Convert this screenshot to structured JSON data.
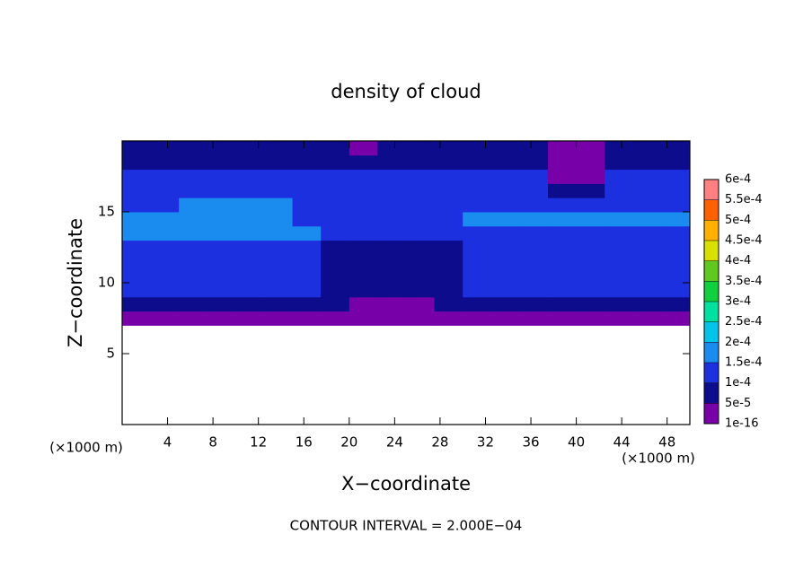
{
  "chart_data": {
    "type": "contour",
    "title": "density of cloud",
    "xlabel": "X−coordinate",
    "ylabel": "Z−coordinate",
    "xunit_left": "(×1000 m)",
    "xunit_right": "(×1000 m)",
    "footnote": "CONTOUR INTERVAL = 2.000E−04",
    "xlim": [
      0,
      50
    ],
    "ylim": [
      0,
      20
    ],
    "xticks": [
      4,
      8,
      12,
      16,
      20,
      24,
      28,
      32,
      36,
      40,
      44,
      48
    ],
    "yticks": [
      5,
      10,
      15
    ],
    "x": [
      1.25,
      3.75,
      6.25,
      8.75,
      11.25,
      13.75,
      16.25,
      18.75,
      21.25,
      23.75,
      26.25,
      28.75,
      31.25,
      33.75,
      36.25,
      38.75,
      41.25,
      43.75,
      46.25,
      48.75
    ],
    "y": [
      7.5,
      8.5,
      9.5,
      10.5,
      11.5,
      12.5,
      13.5,
      14.5,
      15.5,
      16.5,
      17.5,
      18.5,
      19.5
    ],
    "z": [
      [
        3e-05,
        3e-05,
        3e-05,
        3e-05,
        3e-05,
        3e-05,
        3e-05,
        3e-05,
        3e-05,
        3e-05,
        3e-05,
        3e-05,
        3e-05,
        3e-05,
        3e-05,
        3e-05,
        3e-05,
        3e-05,
        3e-05,
        3e-05
      ],
      [
        7e-05,
        7e-05,
        7e-05,
        7e-05,
        7e-05,
        7e-05,
        7e-05,
        7e-05,
        4e-05,
        4e-05,
        4e-05,
        7e-05,
        7e-05,
        7e-05,
        7e-05,
        7e-05,
        7e-05,
        7e-05,
        7e-05,
        7e-05
      ],
      [
        0.00011,
        0.00011,
        0.00011,
        0.00011,
        0.00011,
        0.00011,
        0.00011,
        8e-05,
        8e-05,
        8e-05,
        8e-05,
        8e-05,
        0.00011,
        0.00011,
        0.00011,
        0.00011,
        0.00011,
        0.00011,
        0.00011,
        0.00011
      ],
      [
        0.00012,
        0.00012,
        0.00012,
        0.00012,
        0.00012,
        0.00012,
        0.00012,
        7e-05,
        7e-05,
        7e-05,
        7e-05,
        7e-05,
        0.00012,
        0.00012,
        0.00012,
        0.00012,
        0.00012,
        0.00012,
        0.00012,
        0.00012
      ],
      [
        0.00013,
        0.00013,
        0.00013,
        0.00013,
        0.00013,
        0.00013,
        0.00013,
        6e-05,
        6e-05,
        6e-05,
        6e-05,
        6e-05,
        0.00013,
        0.00013,
        0.00013,
        0.00013,
        0.00013,
        0.00013,
        0.00013,
        0.00013
      ],
      [
        0.00014,
        0.00014,
        0.00014,
        0.00014,
        0.00014,
        0.00014,
        0.00014,
        7e-05,
        7e-05,
        7e-05,
        7e-05,
        7e-05,
        0.00014,
        0.00014,
        0.00014,
        0.00014,
        0.00014,
        0.00014,
        0.00014,
        0.00014
      ],
      [
        0.000155,
        0.000155,
        0.000155,
        0.000155,
        0.000155,
        0.000155,
        0.000155,
        0.0001,
        0.0001,
        0.0001,
        0.0001,
        0.0001,
        0.000145,
        0.000145,
        0.000145,
        0.000145,
        0.000145,
        0.000145,
        0.000145,
        0.000145
      ],
      [
        0.00016,
        0.00016,
        0.00016,
        0.00016,
        0.00016,
        0.00016,
        0.00012,
        0.00012,
        0.00012,
        0.00012,
        0.00012,
        0.00012,
        0.000155,
        0.000155,
        0.000155,
        0.000155,
        0.000155,
        0.000155,
        0.000155,
        0.000155
      ],
      [
        0.00013,
        0.00013,
        0.000155,
        0.000155,
        0.000155,
        0.000155,
        0.00013,
        0.00013,
        0.00013,
        0.00013,
        0.00013,
        0.00013,
        0.00013,
        0.00013,
        0.00013,
        0.00013,
        0.00013,
        0.00013,
        0.00013,
        0.00013
      ],
      [
        0.00012,
        0.00012,
        0.00012,
        0.00012,
        0.00012,
        0.00012,
        0.00012,
        0.00012,
        0.00012,
        0.00012,
        0.00012,
        0.00012,
        0.00012,
        0.00012,
        0.00012,
        5e-05,
        5e-05,
        0.00012,
        0.00012,
        0.00012
      ],
      [
        0.0001,
        0.0001,
        0.0001,
        0.0001,
        0.0001,
        0.0001,
        0.0001,
        0.0001,
        0.0001,
        0.0001,
        0.0001,
        0.0001,
        0.0001,
        0.0001,
        0.0001,
        3e-05,
        3e-05,
        0.0001,
        0.0001,
        0.0001
      ],
      [
        8e-05,
        8e-05,
        8e-05,
        8e-05,
        8e-05,
        8e-05,
        8e-05,
        8e-05,
        8e-05,
        8e-05,
        8e-05,
        8e-05,
        8e-05,
        8e-05,
        8e-05,
        3e-05,
        3e-05,
        8e-05,
        8e-05,
        8e-05
      ],
      [
        6e-05,
        6e-05,
        6e-05,
        6e-05,
        6e-05,
        6e-05,
        6e-05,
        6e-05,
        4e-05,
        6e-05,
        6e-05,
        6e-05,
        6e-05,
        6e-05,
        6e-05,
        3e-05,
        3e-05,
        6e-05,
        6e-05,
        6e-05
      ]
    ],
    "colorbar": {
      "ticks": [
        {
          "value": 1e-16,
          "label": "1e-16"
        },
        {
          "value": 5e-05,
          "label": "5e-5"
        },
        {
          "value": 0.0001,
          "label": "1e-4"
        },
        {
          "value": 0.00015,
          "label": "1.5e-4"
        },
        {
          "value": 0.0002,
          "label": "2e-4"
        },
        {
          "value": 0.00025,
          "label": "2.5e-4"
        },
        {
          "value": 0.0003,
          "label": "3e-4"
        },
        {
          "value": 0.00035,
          "label": "3.5e-4"
        },
        {
          "value": 0.0004,
          "label": "4e-4"
        },
        {
          "value": 0.00045,
          "label": "4.5e-4"
        },
        {
          "value": 0.0005,
          "label": "5e-4"
        },
        {
          "value": 0.00055,
          "label": "5.5e-4"
        },
        {
          "value": 0.0006,
          "label": "6e-4"
        }
      ],
      "colors": [
        "#7800a8",
        "#0c0c8c",
        "#1c30e0",
        "#1a8cf0",
        "#00c4e8",
        "#00e0a0",
        "#10d040",
        "#60c820",
        "#d8e000",
        "#ffb000",
        "#ff6000",
        "#ff8080"
      ]
    }
  }
}
